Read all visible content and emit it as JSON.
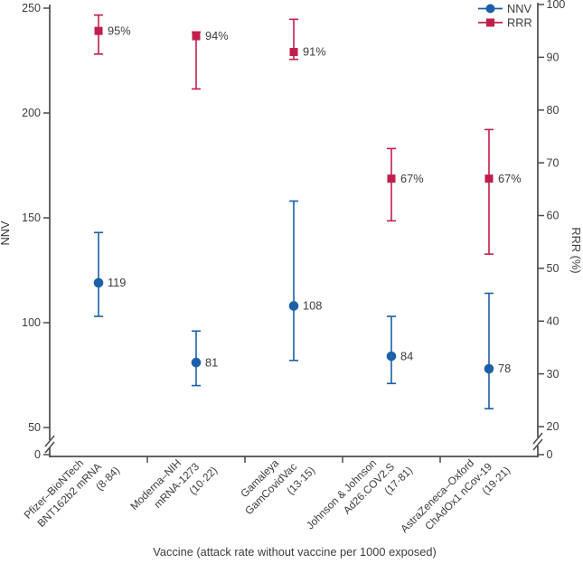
{
  "chart_data": {
    "type": "scatter",
    "title": "",
    "xlabel": "Vaccine (attack rate without vaccine per 1000 exposed)",
    "ylabel_left": "NNV",
    "ylabel_right": "RRR (%)",
    "left_axis": {
      "ticks": [
        250,
        200,
        150,
        100,
        50,
        0
      ],
      "axis_break_between": [
        0,
        50
      ]
    },
    "right_axis": {
      "ticks": [
        100,
        90,
        80,
        70,
        60,
        50,
        40,
        30,
        20,
        0
      ],
      "axis_break_between": [
        0,
        20
      ]
    },
    "grid": "off",
    "categories": [
      {
        "line1": "Pfizer–BioNTech",
        "line2": "BNT162b2 mRNA",
        "line3": "(8·84)"
      },
      {
        "line1": "Moderna–NIH",
        "line2": "mRNA-1273",
        "line3": "(10·22)"
      },
      {
        "line1": "Gamaleya",
        "line2": "GamCovidVac",
        "line3": "(13·15)"
      },
      {
        "line1": "Johnson & Johnson",
        "line2": "Ad26.COV2.S",
        "line3": "(17·81)"
      },
      {
        "line1": "AstraZeneca–Oxford",
        "line2": "ChAdOx1 nCov-19",
        "line3": "(19·21)"
      }
    ],
    "series": [
      {
        "name": "NNV",
        "axis": "left",
        "marker": "circle",
        "color": "#1b60a8",
        "points": [
          {
            "category": "Pfizer–BioNTech",
            "value": 119,
            "ci_low": 103,
            "ci_high": 143,
            "label": "119"
          },
          {
            "category": "Moderna–NIH",
            "value": 81,
            "ci_low": 70,
            "ci_high": 96,
            "label": "81"
          },
          {
            "category": "Gamaleya",
            "value": 108,
            "ci_low": 82,
            "ci_high": 158,
            "label": "108"
          },
          {
            "category": "Johnson & Johnson",
            "value": 84,
            "ci_low": 71,
            "ci_high": 103,
            "label": "84"
          },
          {
            "category": "AstraZeneca–Oxford",
            "value": 78,
            "ci_low": 59,
            "ci_high": 114,
            "label": "78"
          }
        ]
      },
      {
        "name": "RRR",
        "axis": "right",
        "marker": "square",
        "color": "#c11e4e",
        "points": [
          {
            "category": "Pfizer–BioNTech",
            "value": 95,
            "ci_low": 90.6,
            "ci_high": 98,
            "label": "95%"
          },
          {
            "category": "Moderna–NIH",
            "value": 94,
            "ci_low": 84,
            "ci_high": 94.8,
            "label": "94%"
          },
          {
            "category": "Gamaleya",
            "value": 91,
            "ci_low": 89.6,
            "ci_high": 97.2,
            "label": "91%"
          },
          {
            "category": "Johnson & Johnson",
            "value": 67,
            "ci_low": 59,
            "ci_high": 72.7,
            "label": "67%"
          },
          {
            "category": "AstraZeneca–Oxford",
            "value": 67,
            "ci_low": 52.7,
            "ci_high": 76.3,
            "label": "67%"
          }
        ]
      }
    ],
    "legend": {
      "position": "top-right",
      "items": [
        {
          "label": "NNV"
        },
        {
          "label": "RRR"
        }
      ]
    }
  }
}
